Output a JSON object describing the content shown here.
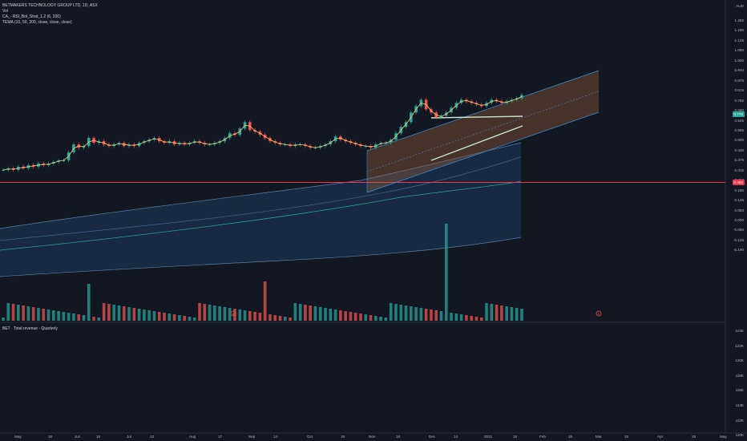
{
  "chart": {
    "symbol_title": "BETMAKERS TECHNOLOGY GROUP LTD, 1D, ASX",
    "legend_vol": "Vol",
    "legend_rsi": "CA_- RSI_Bol_Strat_1.2 (6, 200)",
    "legend_tema": "TEMA (10, 50, 200, close, close, close)",
    "currency": "AUD",
    "last_price_tag": "0.770",
    "hline_price_tag": "0.450",
    "colors": {
      "background": "#131722",
      "up": "#26a69a",
      "down": "#ef5350",
      "hline": "#f23645",
      "channel_fill": "#a5673f",
      "band_fill": "#1e3a5f",
      "trend_line": "#c8e6c9"
    }
  },
  "price_axis": {
    "labels": [
      "1.250",
      "1.190",
      "1.125",
      "1.065",
      "1.000",
      "0.940",
      "0.875",
      "0.815",
      "0.750",
      "0.690",
      "0.625",
      "0.565",
      "0.500",
      "0.440",
      "0.375",
      "0.315",
      "0.250",
      "0.190",
      "0.125",
      "0.063",
      "0.000",
      "-0.065",
      "-0.125",
      "-0.190"
    ]
  },
  "revenue_pane": {
    "legend": "BET · Total revenue · Quarterly",
    "labels": [
      "124K",
      "122K",
      "120K",
      "118K",
      "116K",
      "114K",
      "112K",
      "110K"
    ]
  },
  "time_axis": {
    "labels": [
      "May",
      "18",
      "Jun",
      "16",
      "Jul",
      "13",
      "Aug",
      "17",
      "Sep",
      "14",
      "Oct",
      "19",
      "Nov",
      "16",
      "Dec",
      "14",
      "2021",
      "18",
      "Feb",
      "15",
      "Mar",
      "15",
      "Apr",
      "19",
      "May"
    ]
  },
  "chart_data": {
    "type": "candlestick",
    "ylim": [
      -0.19,
      1.25
    ],
    "series_close": [
      0.3,
      0.31,
      0.3,
      0.32,
      0.31,
      0.33,
      0.32,
      0.34,
      0.33,
      0.34,
      0.35,
      0.36,
      0.36,
      0.41,
      0.46,
      0.44,
      0.45,
      0.5,
      0.47,
      0.48,
      0.46,
      0.45,
      0.46,
      0.47,
      0.45,
      0.46,
      0.45,
      0.47,
      0.48,
      0.49,
      0.5,
      0.48,
      0.47,
      0.48,
      0.46,
      0.47,
      0.46,
      0.47,
      0.48,
      0.47,
      0.46,
      0.46,
      0.47,
      0.48,
      0.5,
      0.53,
      0.52,
      0.56,
      0.6,
      0.55,
      0.54,
      0.52,
      0.5,
      0.48,
      0.47,
      0.46,
      0.46,
      0.45,
      0.46,
      0.46,
      0.45,
      0.44,
      0.44,
      0.45,
      0.46,
      0.48,
      0.51,
      0.49,
      0.48,
      0.47,
      0.46,
      0.45,
      0.45,
      0.44,
      0.46,
      0.47,
      0.47,
      0.49,
      0.53,
      0.57,
      0.6,
      0.66,
      0.7,
      0.74,
      0.68,
      0.66,
      0.63,
      0.64,
      0.66,
      0.69,
      0.72,
      0.74,
      0.73,
      0.72,
      0.71,
      0.7,
      0.72,
      0.74,
      0.73,
      0.72,
      0.73,
      0.74,
      0.75,
      0.77
    ],
    "event_markers": [
      "E",
      "E"
    ]
  }
}
